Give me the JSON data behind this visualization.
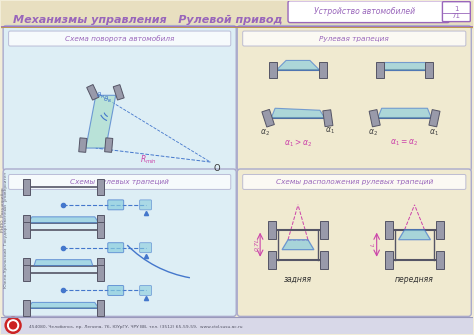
{
  "bg_color": "#f2edd8",
  "panel_bg_tl": "#ddeef5",
  "panel_bg_tr": "#f0ead0",
  "panel_bg_bl": "#ddeef5",
  "panel_bg_br": "#f0ead0",
  "purple": "#9966bb",
  "blue": "#4477cc",
  "cyan_fill": "#88ccdd",
  "pink": "#cc44aa",
  "wheel_color": "#999aaa",
  "wheel_edge": "#555566",
  "title_main": "Механизмы управления   Рулевой привод",
  "title_corner": "Устройство автомобилей",
  "panel_tl_title": "Схема поворота автомобиля",
  "panel_tr_title": "Рулевая трапеция",
  "panel_bl_title": "Схемы рулевых трапеций",
  "panel_br_title": "Схемы расположения рулевых трапеций",
  "footer_text": "454080, Челябинск, пр. Ленина, 76, ЮУрГУ, ЧРУ ВВ, тел. (3512) 65-59-59,  www.ctd.susu.ac.ru",
  "side_text": "Южно-Уральский  Государственный  университет",
  "side_text2": "РНПО  Росучприбор"
}
